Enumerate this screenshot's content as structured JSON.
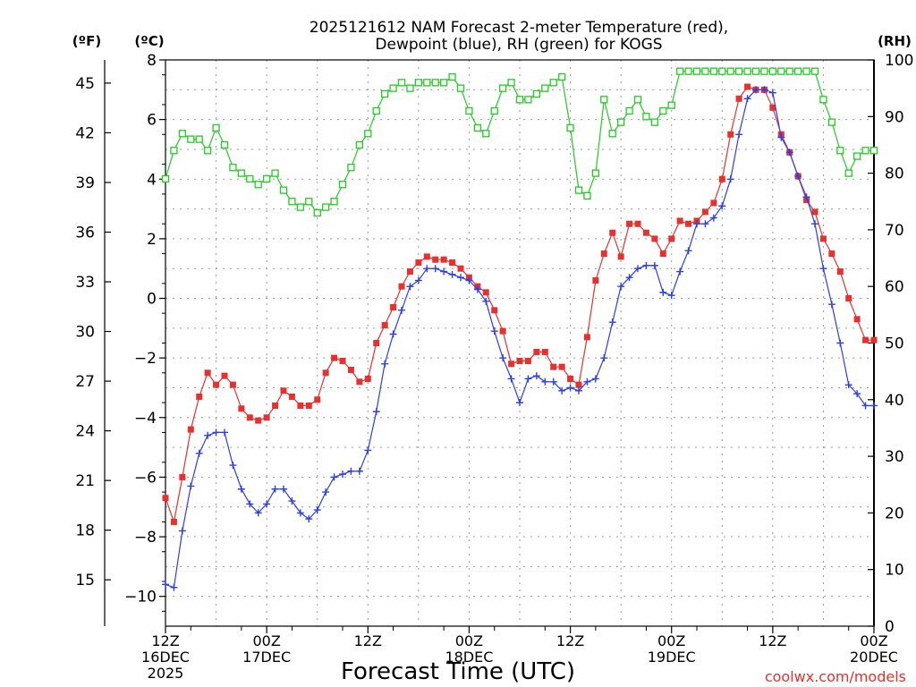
{
  "chart_data": {
    "type": "line",
    "title_line1": "2025121612 NAM Forecast 2-meter Temperature (red),",
    "title_line2": "Dewpoint (blue), RH (green) for KOGS",
    "xlabel": "Forecast Time (UTC)",
    "watermark": "coolwx.com/models",
    "left_units_f": "(ºF)",
    "left_units_c": "(ºC)",
    "right_units": "(RH)",
    "xlim": [
      0,
      84
    ],
    "ylim_c": [
      -11,
      8
    ],
    "ylim_rh": [
      0,
      100
    ],
    "x_ticks": [
      {
        "x": 0,
        "lines": [
          "12Z",
          "16DEC",
          "2025"
        ]
      },
      {
        "x": 12,
        "lines": [
          "00Z",
          "17DEC"
        ]
      },
      {
        "x": 24,
        "lines": [
          "12Z"
        ]
      },
      {
        "x": 36,
        "lines": [
          "00Z",
          "18DEC"
        ]
      },
      {
        "x": 48,
        "lines": [
          "12Z"
        ]
      },
      {
        "x": 60,
        "lines": [
          "00Z",
          "19DEC"
        ]
      },
      {
        "x": 72,
        "lines": [
          "12Z"
        ]
      },
      {
        "x": 84,
        "lines": [
          "00Z",
          "20DEC"
        ]
      }
    ],
    "c_ticks": [
      {
        "v": 8,
        "label": "8"
      },
      {
        "v": 6,
        "label": "6"
      },
      {
        "v": 4,
        "label": "4"
      },
      {
        "v": 2,
        "label": "2"
      },
      {
        "v": 0,
        "label": "0"
      },
      {
        "v": -2,
        "label": "−2"
      },
      {
        "v": -4,
        "label": "−4"
      },
      {
        "v": -6,
        "label": "−6"
      },
      {
        "v": -8,
        "label": "−8"
      },
      {
        "v": -10,
        "label": "−10"
      }
    ],
    "f_ticks": [
      "45",
      "42",
      "39",
      "36",
      "33",
      "30",
      "27",
      "24",
      "21",
      "18",
      "15"
    ],
    "rh_ticks": [
      "100",
      "90",
      "80",
      "70",
      "60",
      "50",
      "40",
      "30",
      "20",
      "10",
      "0"
    ],
    "x_hours": [
      0,
      1,
      2,
      3,
      4,
      5,
      6,
      7,
      8,
      9,
      10,
      11,
      12,
      13,
      14,
      15,
      16,
      17,
      18,
      19,
      20,
      21,
      22,
      23,
      24,
      25,
      26,
      27,
      28,
      29,
      30,
      31,
      32,
      33,
      34,
      35,
      36,
      37,
      38,
      39,
      40,
      41,
      42,
      43,
      44,
      45,
      46,
      47,
      48,
      49,
      50,
      51,
      52,
      53,
      54,
      55,
      56,
      57,
      58,
      59,
      60,
      61,
      62,
      63,
      64,
      65,
      66,
      67,
      68,
      69,
      70,
      71,
      72,
      73,
      74,
      75,
      76,
      77,
      78,
      79,
      80,
      81,
      82,
      83,
      84
    ],
    "series": [
      {
        "name": "Temperature",
        "color": "#e8312f",
        "marker": "filled-square",
        "values": [
          -6.7,
          -7.5,
          -6.0,
          -4.4,
          -3.3,
          -2.5,
          -2.9,
          -2.6,
          -2.9,
          -3.7,
          -4.0,
          -4.1,
          -4.0,
          -3.6,
          -3.1,
          -3.3,
          -3.6,
          -3.6,
          -3.4,
          -2.5,
          -2.0,
          -2.1,
          -2.4,
          -2.8,
          -2.7,
          -1.5,
          -0.9,
          -0.3,
          0.4,
          0.9,
          1.2,
          1.4,
          1.3,
          1.3,
          1.2,
          1.0,
          0.7,
          0.4,
          0.2,
          -0.4,
          -1.1,
          -2.2,
          -2.1,
          -2.1,
          -1.8,
          -1.8,
          -2.3,
          -2.3,
          -2.7,
          -2.9,
          -1.3,
          0.6,
          1.5,
          2.2,
          1.4,
          2.5,
          2.5,
          2.2,
          2.0,
          1.5,
          2.0,
          2.6,
          2.5,
          2.6,
          2.9,
          3.2,
          4.0,
          5.5,
          6.7,
          7.1,
          7.0,
          7.0,
          6.4,
          5.5,
          4.9,
          4.1,
          3.3,
          2.9,
          2.0,
          1.5,
          0.9,
          0.0,
          -0.7,
          -1.4,
          -1.4
        ]
      },
      {
        "name": "Dewpoint",
        "color": "#2c3fe6",
        "marker": "plus",
        "values": [
          -9.6,
          -9.7,
          -7.8,
          -6.3,
          -5.2,
          -4.6,
          -4.5,
          -4.5,
          -5.6,
          -6.4,
          -6.9,
          -7.2,
          -6.9,
          -6.4,
          -6.4,
          -6.8,
          -7.2,
          -7.4,
          -7.1,
          -6.5,
          -6.0,
          -5.9,
          -5.8,
          -5.8,
          -5.1,
          -3.8,
          -2.2,
          -1.2,
          -0.4,
          0.4,
          0.6,
          1.0,
          1.0,
          0.9,
          0.8,
          0.7,
          0.6,
          0.3,
          -0.1,
          -1.1,
          -2.0,
          -2.7,
          -3.5,
          -2.7,
          -2.6,
          -2.8,
          -2.8,
          -3.1,
          -3.0,
          -3.1,
          -2.8,
          -2.7,
          -2.0,
          -0.8,
          0.4,
          0.7,
          1.0,
          1.1,
          1.1,
          0.2,
          0.1,
          0.9,
          1.6,
          2.5,
          2.5,
          2.7,
          3.1,
          4.0,
          5.5,
          6.7,
          7.0,
          7.0,
          6.9,
          5.4,
          4.9,
          4.1,
          3.4,
          2.5,
          1.0,
          -0.2,
          -1.5,
          -2.9,
          -3.2,
          -3.6,
          -3.6
        ]
      },
      {
        "name": "RH",
        "color": "#22cc22",
        "marker": "open-square",
        "axis": "right",
        "values": [
          79,
          84,
          87,
          86,
          86,
          84,
          88,
          85,
          81,
          80,
          79,
          78,
          79,
          80,
          77,
          75,
          74,
          75,
          73,
          74,
          75,
          78,
          81,
          85,
          87,
          91,
          94,
          95,
          96,
          95,
          96,
          96,
          96,
          96,
          97,
          95,
          91,
          88,
          87,
          91,
          95,
          96,
          93,
          93,
          94,
          95,
          96,
          97,
          88,
          77,
          76,
          80,
          93,
          87,
          89,
          91,
          93,
          90,
          89,
          91,
          92,
          98,
          98,
          98,
          98,
          98,
          98,
          98,
          98,
          98,
          98,
          98,
          98,
          98,
          98,
          98,
          98,
          98,
          93,
          89,
          84,
          80,
          83,
          84,
          84
        ]
      }
    ]
  }
}
